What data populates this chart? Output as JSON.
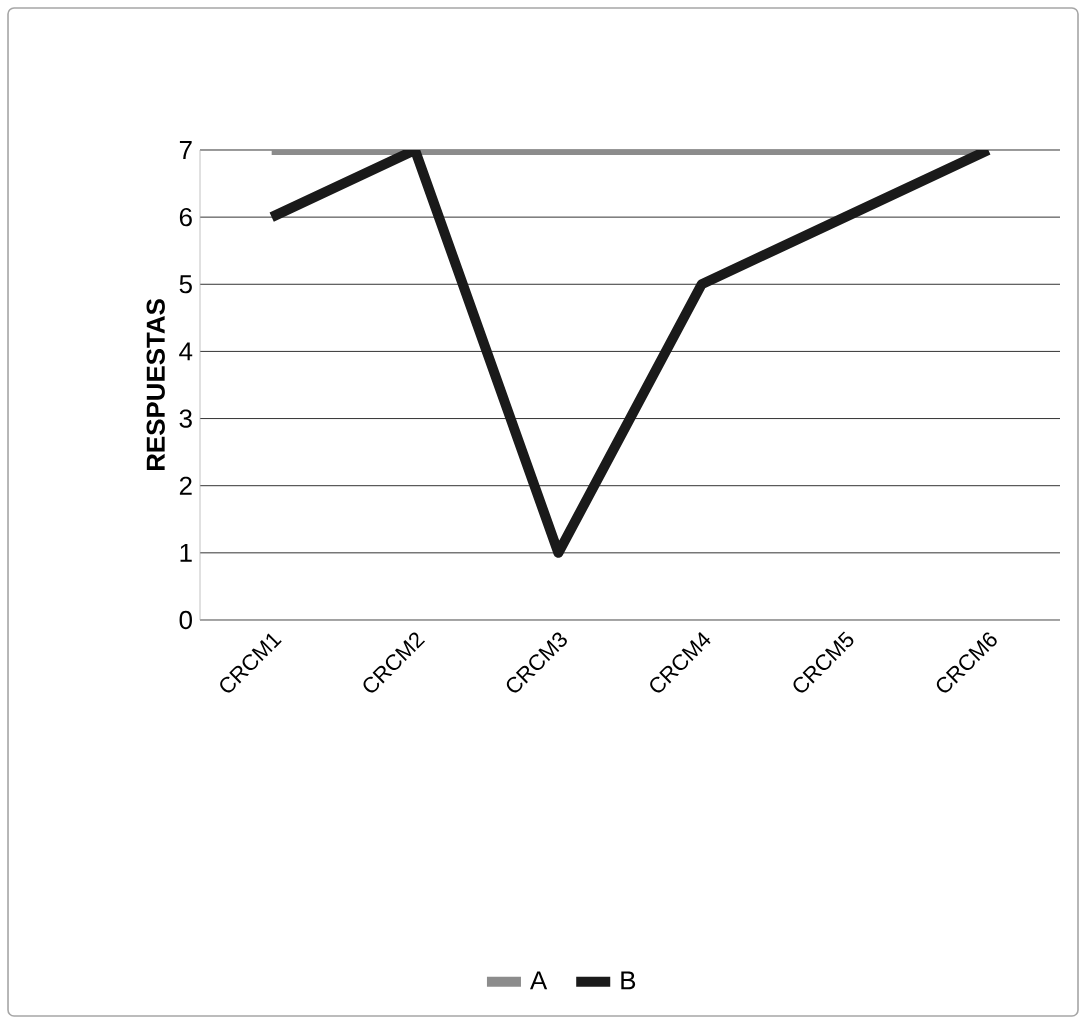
{
  "chart_data": {
    "type": "line",
    "ylabel": "RESPUESTAS",
    "categories": [
      "CRCM1",
      "CRCM2",
      "CRCM3",
      "CRCM4",
      "CRCM5",
      "CRCM6"
    ],
    "series": [
      {
        "name": "A",
        "color": "#8c8c8c",
        "values": [
          7,
          7,
          7,
          7,
          7,
          7
        ]
      },
      {
        "name": "B",
        "color": "#1a1a1a",
        "values": [
          6,
          7,
          1,
          5,
          6,
          7
        ]
      }
    ],
    "ylim": [
      0,
      7
    ],
    "yticks": [
      0,
      1,
      2,
      3,
      4,
      5,
      6,
      7
    ],
    "grid": "y",
    "legend": "bottom",
    "marker": "none",
    "line_style": "solid"
  }
}
